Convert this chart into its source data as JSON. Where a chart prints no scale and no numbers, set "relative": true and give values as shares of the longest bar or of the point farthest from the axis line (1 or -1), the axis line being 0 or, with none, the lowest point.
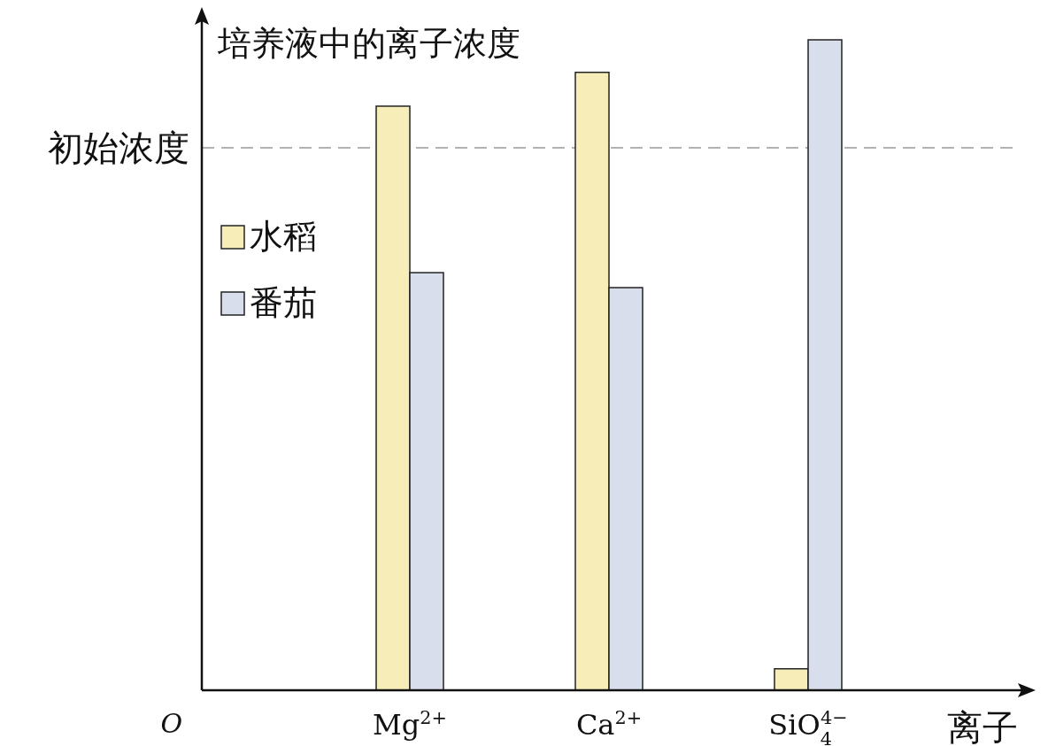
{
  "chart_data": {
    "type": "bar",
    "relative": true,
    "ylabel": "培养液中的离子浓度",
    "xlabel": "离子",
    "annotations": [
      "O"
    ],
    "categories": [
      "Mg$^{2+}$",
      "Ca$^{2+}$",
      "SiO$_{4}$$^{4−}$"
    ],
    "series": [
      {
        "name": "水稻",
        "color": "#f6edb8",
        "values": [
          0.898,
          0.95,
          0.033
        ]
      },
      {
        "name": "番茄",
        "color": "#d9deec",
        "values": [
          0.642,
          0.619,
          1
        ]
      }
    ],
    "ref_lines": [
      {
        "axis": "y",
        "value": 0.834,
        "label": "初始浓度",
        "color": "#999999",
        "line_style": "dashed"
      }
    ],
    "legend": "top left"
  }
}
